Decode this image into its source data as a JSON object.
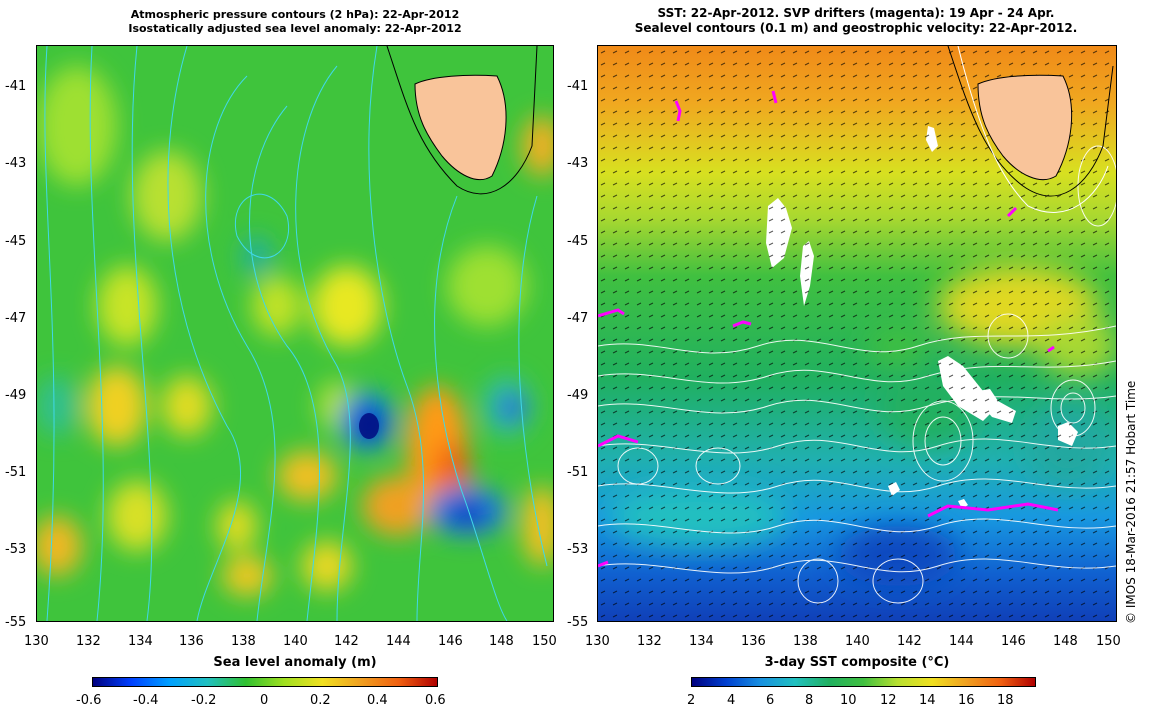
{
  "left_panel": {
    "title_line1": "Atmospheric pressure contours (2 hPa): 22-Apr-2012",
    "title_line2": "Isostatically adjusted sea level anomaly: 22-Apr-2012",
    "y_ticks": [
      "-41",
      "-43",
      "-45",
      "-47",
      "-49",
      "-51",
      "-53",
      "-55"
    ],
    "x_ticks": [
      "130",
      "132",
      "134",
      "136",
      "138",
      "140",
      "142",
      "144",
      "146",
      "148",
      "150"
    ],
    "colorbar_label": "Sea level anomaly (m)",
    "colorbar_ticks": [
      "-0.6",
      "-0.4",
      "-0.2",
      "0",
      "0.2",
      "0.4",
      "0.6"
    ]
  },
  "right_panel": {
    "title_line1": "SST: 22-Apr-2012. SVP drifters (magenta): 19 Apr - 24 Apr.",
    "title_line2": "Sealevel contours (0.1 m) and geostrophic velocity: 22-Apr-2012.",
    "y_ticks": [
      "-41",
      "-43",
      "-45",
      "-47",
      "-49",
      "-51",
      "-53",
      "-55"
    ],
    "x_ticks": [
      "130",
      "132",
      "134",
      "136",
      "138",
      "140",
      "142",
      "144",
      "146",
      "148",
      "150"
    ],
    "colorbar_label": "3-day SST composite (°C)",
    "colorbar_ticks": [
      "2",
      "4",
      "6",
      "8",
      "10",
      "12",
      "14",
      "16",
      "18"
    ]
  },
  "credit": "© IMOS 18-Mar-2016 21:57 Hobart Time",
  "colors": {
    "land": "#f9c49a",
    "drifter": "#ff00ff",
    "sla_contour": "#40d8e8",
    "ssh_contour": "#ffffff"
  }
}
